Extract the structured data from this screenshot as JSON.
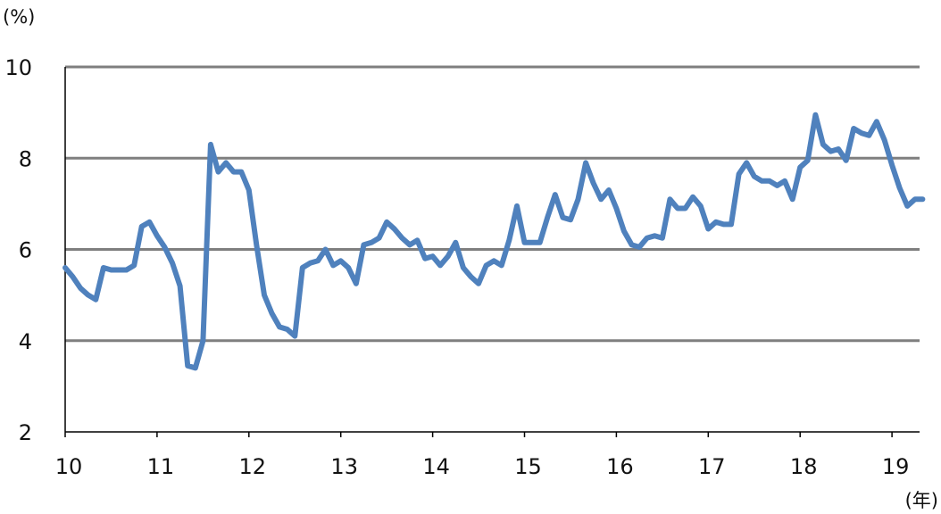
{
  "chart_data": {
    "type": "line",
    "title": "",
    "ylabel": "(%)",
    "xlabel": "(年)",
    "ylim": [
      2,
      10
    ],
    "yticks": [
      2,
      4,
      6,
      8,
      10
    ],
    "ytick_labels": [
      "2",
      "4",
      "6",
      "8",
      "10"
    ],
    "xlim": [
      2010,
      2019.33
    ],
    "xticks": [
      2010,
      2011,
      2012,
      2013,
      2014,
      2015,
      2016,
      2017,
      2018,
      2019
    ],
    "xtick_labels": [
      "10",
      "11",
      "12",
      "13",
      "14",
      "15",
      "16",
      "17",
      "18",
      "19"
    ],
    "grid": "horizontal",
    "legend": "none",
    "line_color": "#4f81bd",
    "grid_color": "#7f7f7f",
    "series": [
      {
        "x": [
          2010.0,
          2010.083,
          2010.167,
          2010.25,
          2010.333,
          2010.417,
          2010.5,
          2010.583,
          2010.667,
          2010.75,
          2010.833,
          2010.917,
          2011.0,
          2011.083,
          2011.167,
          2011.25,
          2011.333,
          2011.417,
          2011.5,
          2011.583,
          2011.667,
          2011.75,
          2011.833,
          2011.917,
          2012.0,
          2012.083,
          2012.167,
          2012.25,
          2012.333,
          2012.417,
          2012.5,
          2012.583,
          2012.667,
          2012.75,
          2012.833,
          2012.917,
          2013.0,
          2013.083,
          2013.167,
          2013.25,
          2013.333,
          2013.417,
          2013.5,
          2013.583,
          2013.667,
          2013.75,
          2013.833,
          2013.917,
          2014.0,
          2014.083,
          2014.167,
          2014.25,
          2014.333,
          2014.417,
          2014.5,
          2014.583,
          2014.667,
          2014.75,
          2014.833,
          2014.917,
          2015.0,
          2015.083,
          2015.167,
          2015.25,
          2015.333,
          2015.417,
          2015.5,
          2015.583,
          2015.667,
          2015.75,
          2015.833,
          2015.917,
          2016.0,
          2016.083,
          2016.167,
          2016.25,
          2016.333,
          2016.417,
          2016.5,
          2016.583,
          2016.667,
          2016.75,
          2016.833,
          2016.917,
          2017.0,
          2017.083,
          2017.167,
          2017.25,
          2017.333,
          2017.417,
          2017.5,
          2017.583,
          2017.667,
          2017.75,
          2017.833,
          2017.917,
          2018.0,
          2018.083,
          2018.167,
          2018.25,
          2018.333,
          2018.417,
          2018.5,
          2018.583,
          2018.667,
          2018.75,
          2018.833,
          2018.917,
          2019.0,
          2019.083,
          2019.167,
          2019.25,
          2019.333
        ],
        "values": [
          5.6,
          5.4,
          5.15,
          5.0,
          4.9,
          5.6,
          5.55,
          5.55,
          5.55,
          5.65,
          6.5,
          6.6,
          6.3,
          6.05,
          5.7,
          5.2,
          3.45,
          3.4,
          4.0,
          8.3,
          7.7,
          7.9,
          7.7,
          7.7,
          7.3,
          6.1,
          5.0,
          4.6,
          4.3,
          4.25,
          4.1,
          5.6,
          5.7,
          5.75,
          6.0,
          5.65,
          5.75,
          5.6,
          5.25,
          6.1,
          6.15,
          6.25,
          6.6,
          6.45,
          6.25,
          6.1,
          6.2,
          5.8,
          5.85,
          5.65,
          5.85,
          6.15,
          5.6,
          5.4,
          5.25,
          5.65,
          5.75,
          5.65,
          6.2,
          6.95,
          6.15,
          6.15,
          6.15,
          6.7,
          7.2,
          6.7,
          6.65,
          7.1,
          7.9,
          7.45,
          7.1,
          7.3,
          6.9,
          6.4,
          6.1,
          6.05,
          6.25,
          6.3,
          6.25,
          7.1,
          6.9,
          6.9,
          7.15,
          6.95,
          6.45,
          6.6,
          6.55,
          6.55,
          7.65,
          7.9,
          7.6,
          7.5,
          7.5,
          7.4,
          7.5,
          7.1,
          7.8,
          7.95,
          8.95,
          8.3,
          8.15,
          8.2,
          7.95,
          8.65,
          8.55,
          8.5,
          8.8,
          8.4,
          7.85,
          7.35,
          6.95,
          7.1,
          7.1
        ]
      }
    ]
  }
}
